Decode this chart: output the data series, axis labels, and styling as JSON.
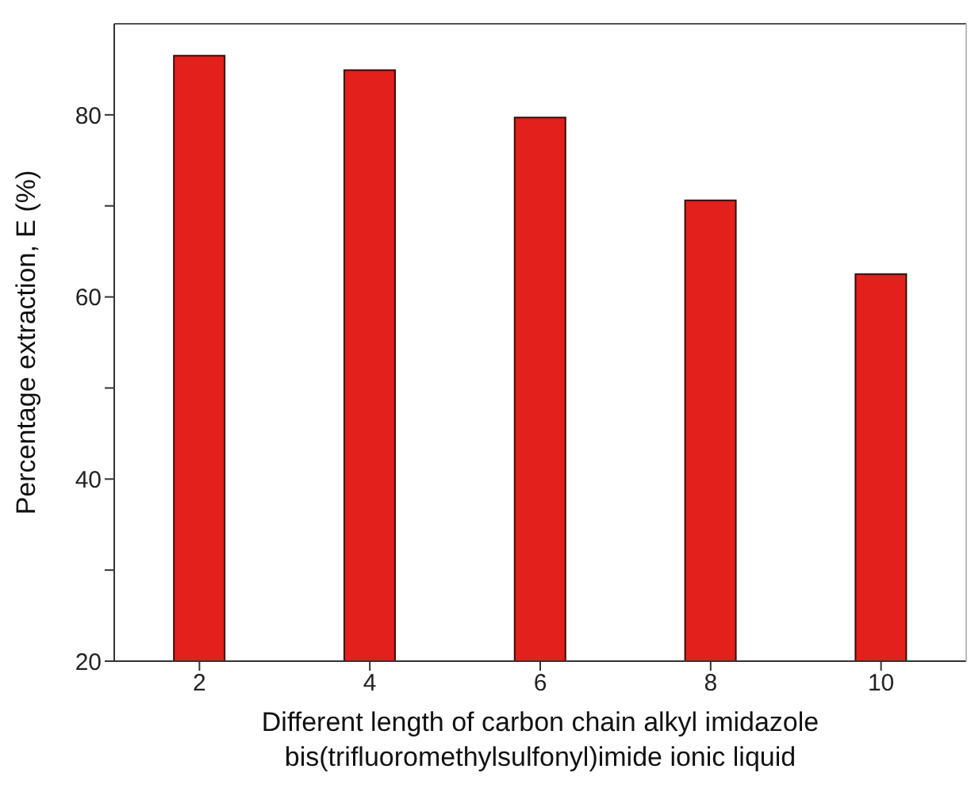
{
  "chart_data": {
    "type": "bar",
    "xlabel": "Different length of carbon chain alkyl imidazole bis(trifluoromethylsulfonyl)imide ionic liquid",
    "ylabel": "Percentage extraction, E (%)",
    "categories": [
      "2",
      "4",
      "6",
      "8",
      "10"
    ],
    "values": [
      86.5,
      84.9,
      79.7,
      70.6,
      62.5
    ],
    "color": "#e3201b",
    "ylim": [
      20,
      90
    ],
    "yticks": [
      20,
      {
        "value": 30,
        "label": null
      },
      40,
      {
        "value": 50,
        "label": null
      },
      60,
      {
        "value": 70,
        "label": null
      },
      80
    ],
    "grid": false,
    "legend": false
  }
}
